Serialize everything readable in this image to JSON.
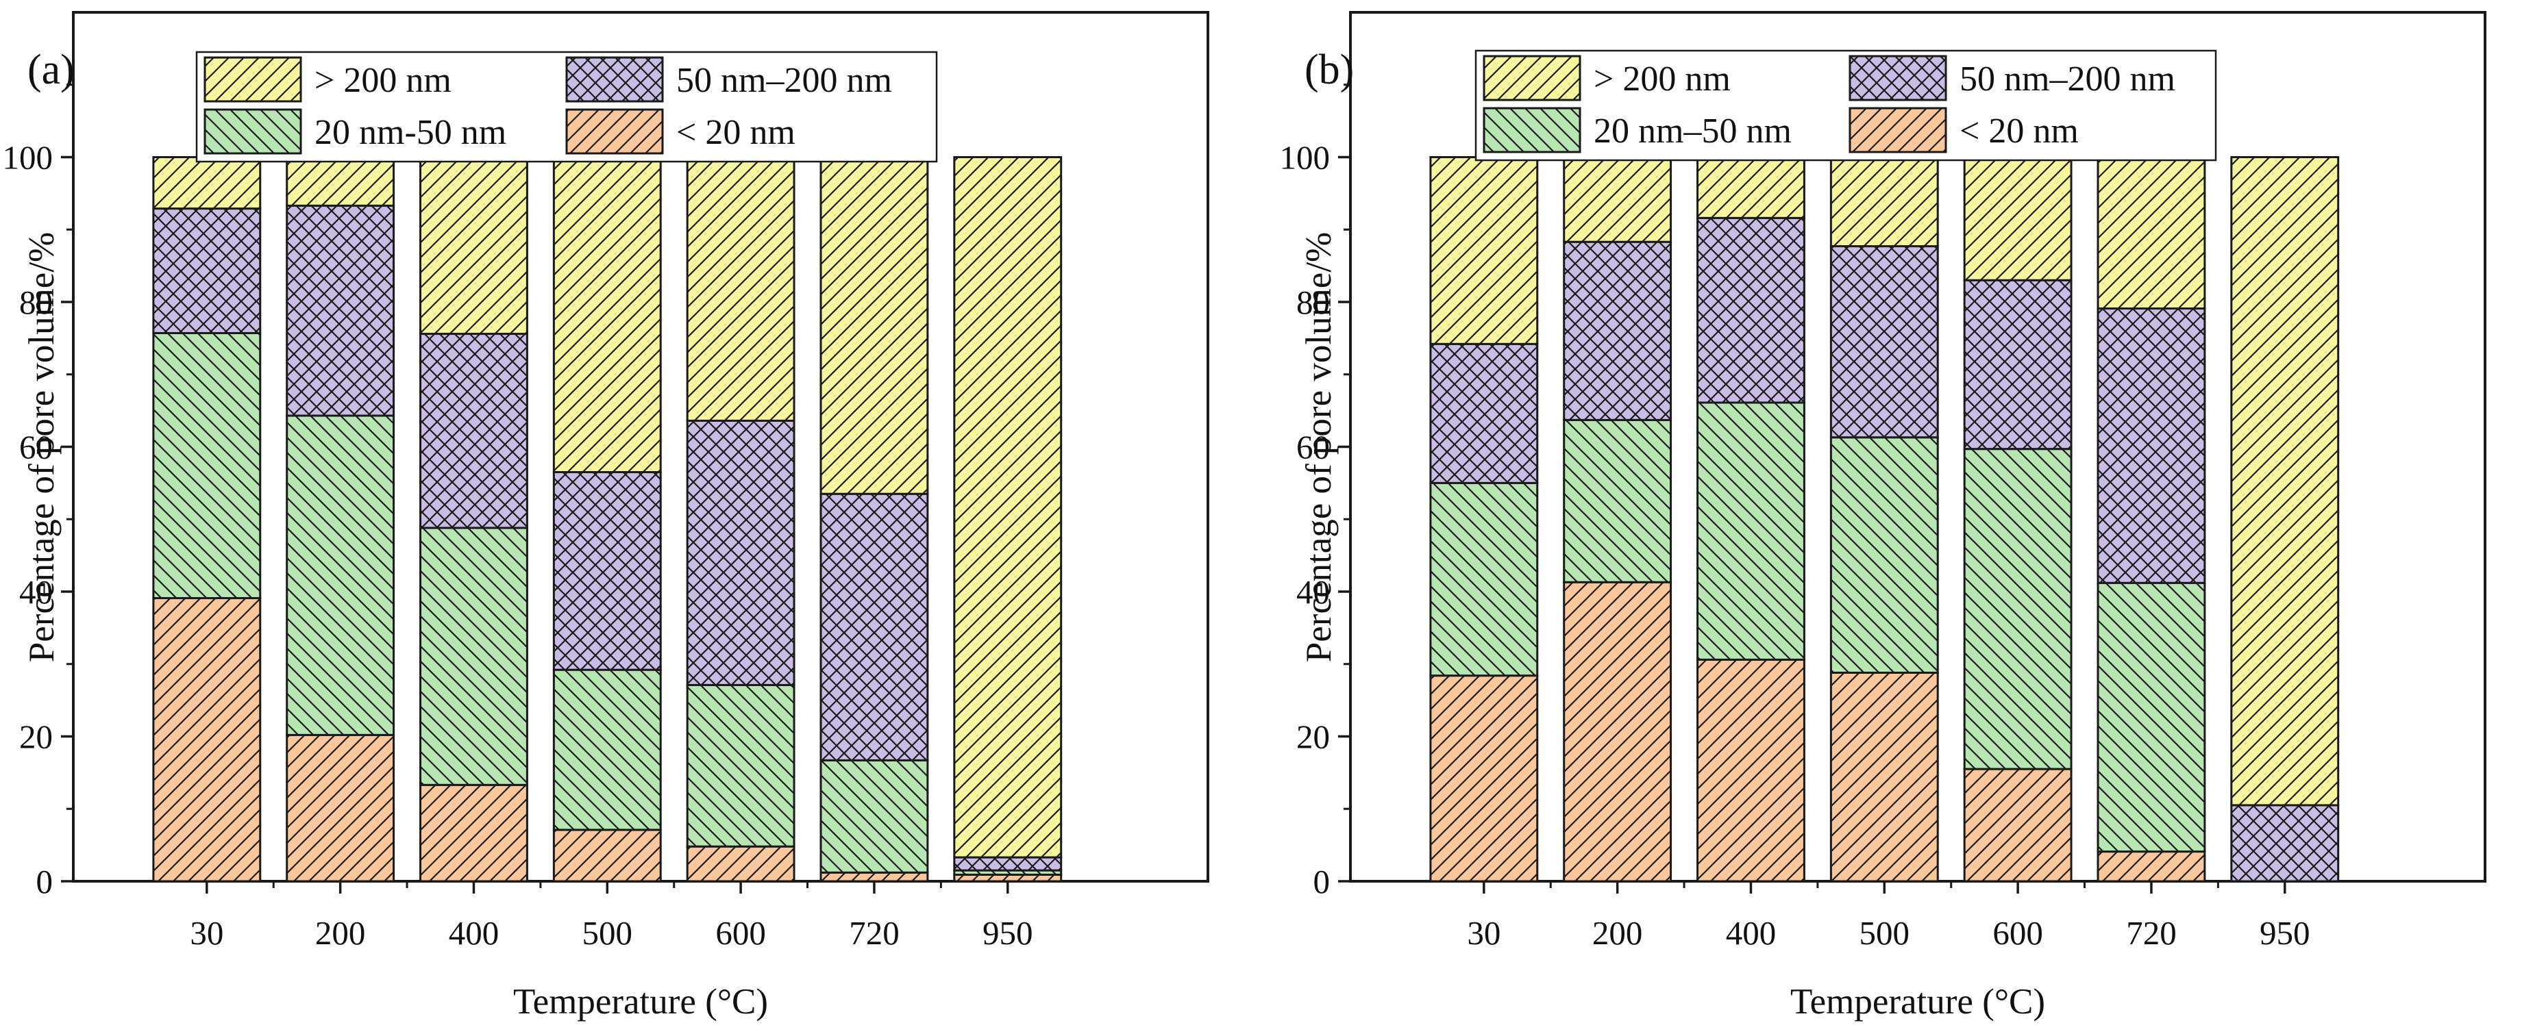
{
  "colors": {
    "gt200": "#f7f59d",
    "nm50_200": "#c9bde6",
    "nm20_50": "#b8e6b2",
    "lt20": "#f9c79b",
    "ink": "#1a1a1a"
  },
  "chart_data": [
    {
      "type": "bar",
      "stacked": true,
      "panel_label": "(a)",
      "title": "",
      "xlabel": "Temperature (°C)",
      "ylabel": "Percentage of pore volume/%",
      "ylim": [
        0,
        120
      ],
      "yticks": [
        "0",
        "20",
        "40",
        "60",
        "80",
        "100"
      ],
      "categories": [
        "30",
        "200",
        "400",
        "500",
        "600",
        "720",
        "950"
      ],
      "series": [
        {
          "name": "< 20 nm",
          "key": "lt20",
          "hatch": "diag-up",
          "values": [
            39.1,
            20.2,
            13.3,
            7.1,
            4.8,
            1.2,
            0.9
          ]
        },
        {
          "name": "20 nm-50 nm",
          "key": "nm20_50",
          "hatch": "diag-down",
          "values": [
            36.6,
            44.1,
            35.5,
            22.1,
            22.3,
            15.5,
            0.6
          ]
        },
        {
          "name": "50 nm–200 nm",
          "key": "nm50_200",
          "hatch": "cross",
          "values": [
            17.2,
            29.0,
            26.8,
            27.3,
            36.5,
            36.8,
            1.8
          ]
        },
        {
          "name": "> 200 nm",
          "key": "gt200",
          "hatch": "diag-up",
          "values": [
            7.1,
            6.7,
            24.4,
            43.5,
            36.4,
            46.5,
            96.7
          ]
        }
      ],
      "legend": {
        "placement": "top-left",
        "order": [
          "> 200 nm",
          "50 nm–200 nm",
          "20 nm-50 nm",
          "< 20 nm"
        ]
      }
    },
    {
      "type": "bar",
      "stacked": true,
      "panel_label": "(b)",
      "title": "",
      "xlabel": "Temperature (°C)",
      "ylabel": "Percentage of pore volume/%",
      "ylim": [
        0,
        120
      ],
      "yticks": [
        "0",
        "20",
        "40",
        "60",
        "80",
        "100"
      ],
      "categories": [
        "30",
        "200",
        "400",
        "500",
        "600",
        "720",
        "950"
      ],
      "series": [
        {
          "name": "< 20 nm",
          "key": "lt20",
          "hatch": "diag-up",
          "values": [
            28.4,
            41.3,
            30.6,
            28.8,
            15.5,
            4.1,
            0.0
          ]
        },
        {
          "name": "20 nm–50 nm",
          "key": "nm20_50",
          "hatch": "diag-down",
          "values": [
            26.6,
            22.4,
            35.5,
            32.5,
            44.2,
            37.1,
            0.0
          ]
        },
        {
          "name": "50 nm–200 nm",
          "key": "nm50_200",
          "hatch": "cross",
          "values": [
            19.2,
            24.6,
            25.5,
            26.4,
            23.3,
            37.9,
            10.5
          ]
        },
        {
          "name": "> 200 nm",
          "key": "gt200",
          "hatch": "diag-up",
          "values": [
            25.8,
            11.7,
            8.4,
            12.3,
            17.0,
            20.9,
            89.5
          ]
        }
      ],
      "legend": {
        "placement": "top-left",
        "order": [
          "> 200 nm",
          "50 nm–200 nm",
          "20 nm–50 nm",
          "< 20 nm"
        ]
      }
    }
  ]
}
